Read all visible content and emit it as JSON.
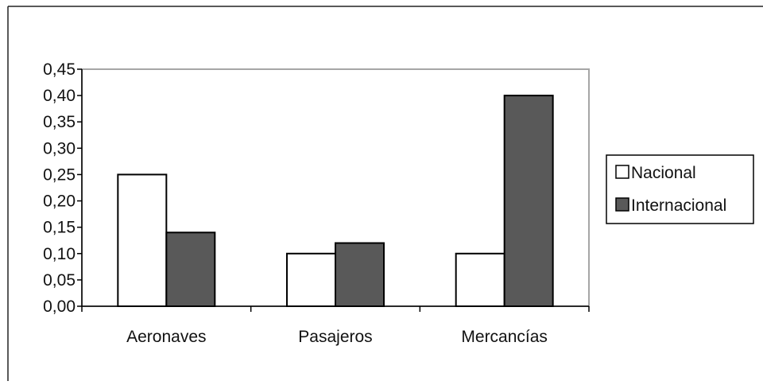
{
  "chart_data": {
    "type": "bar",
    "categories": [
      "Aeronaves",
      "Pasajeros",
      "Mercancías"
    ],
    "series": [
      {
        "name": "Nacional",
        "values": [
          0.25,
          0.1,
          0.1
        ],
        "color": "#ffffff"
      },
      {
        "name": "Internacional",
        "values": [
          0.14,
          0.12,
          0.4
        ],
        "color": "#595959"
      }
    ],
    "ylim": [
      0,
      0.45
    ],
    "yticks": [
      "0,00",
      "0,05",
      "0,10",
      "0,15",
      "0,20",
      "0,25",
      "0,30",
      "0,35",
      "0,40",
      "0,45"
    ],
    "ytick_values": [
      0,
      0.05,
      0.1,
      0.15,
      0.2,
      0.25,
      0.3,
      0.35,
      0.4,
      0.45
    ],
    "grid": false,
    "legend_position": "right",
    "plot_border_color": "#a6a6a6",
    "axis_color": "#000000"
  }
}
